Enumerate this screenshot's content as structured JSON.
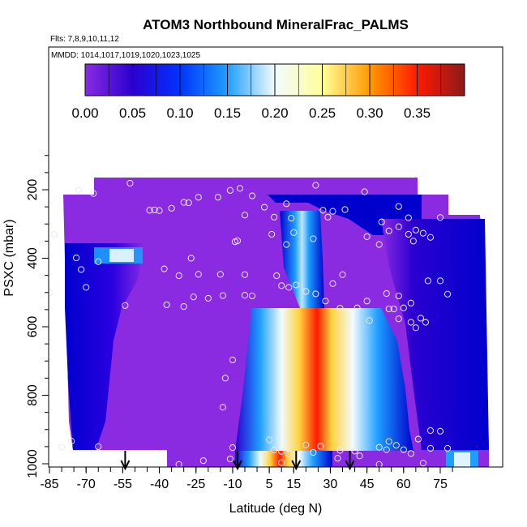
{
  "chart_data": {
    "type": "heatmap",
    "title": "ATOM3 Northbound MineralFrac_PALMS",
    "flights_label": "Flts: 7,8,9,10,11,12",
    "dates_label": "MMDD: 1014,1017,1019,1020,1023,1025",
    "xlabel": "Latitude (deg N)",
    "ylabel": "PSXC (mbar)",
    "x_ticks": [
      "-85",
      "-70",
      "-55",
      "-40",
      "-25",
      "-10",
      "5",
      "15",
      "30",
      "45",
      "60",
      "75"
    ],
    "x_tick_values": [
      -85,
      -70,
      -55,
      -40,
      -25,
      -10,
      5,
      15,
      30,
      45,
      60,
      75
    ],
    "y_ticks": [
      "200",
      "400",
      "600",
      "800",
      "1000"
    ],
    "y_tick_values": [
      200,
      400,
      600,
      800,
      1000
    ],
    "xlim": [
      -85,
      80
    ],
    "ylim_reversed": [
      1000,
      100
    ],
    "colorbar": {
      "ticks": [
        "0.00",
        "0.05",
        "0.10",
        "0.15",
        "0.20",
        "0.25",
        "0.30",
        "0.35"
      ],
      "range": [
        0,
        0.4
      ],
      "colors": [
        "#8a2be2",
        "#0000cd",
        "#1e90ff",
        "#f0f8ff",
        "#ffff99",
        "#ff8c00",
        "#ff0000",
        "#8b1a1a"
      ]
    },
    "arrow_latitudes": [
      -54,
      -8,
      16,
      38
    ],
    "regions": [
      {
        "name": "background",
        "value": 0.01
      },
      {
        "name": "southern-high-lat-blue",
        "value": 0.05
      },
      {
        "name": "tropical-dust-plume-core",
        "value": 0.35
      },
      {
        "name": "tropical-dust-plume-edge",
        "value": 0.15
      },
      {
        "name": "northern-mid-lat-blue",
        "value": 0.06
      }
    ],
    "samples": [
      [
        -73,
        201
      ],
      [
        -67,
        211
      ],
      [
        -52,
        181
      ],
      [
        -44,
        260
      ],
      [
        -42,
        259
      ],
      [
        -40,
        261
      ],
      [
        -35,
        254
      ],
      [
        -30,
        237
      ],
      [
        -28,
        238
      ],
      [
        -24,
        222
      ],
      [
        -16,
        222
      ],
      [
        -11,
        202
      ],
      [
        -7,
        196
      ],
      [
        -2,
        218
      ],
      [
        3,
        251
      ],
      [
        12,
        241
      ],
      [
        24,
        187
      ],
      [
        31,
        263
      ],
      [
        36,
        258
      ],
      [
        44,
        206
      ],
      [
        51,
        294
      ],
      [
        58,
        249
      ],
      [
        62,
        282
      ],
      [
        -5,
        274
      ],
      [
        7,
        280
      ],
      [
        14,
        283
      ],
      [
        27,
        260
      ],
      [
        29,
        280
      ],
      [
        -83,
        330
      ],
      [
        -74,
        399
      ],
      [
        -65,
        410
      ],
      [
        -72,
        433
      ],
      [
        -38,
        431
      ],
      [
        -9,
        352
      ],
      [
        -8,
        349
      ],
      [
        -27,
        400
      ],
      [
        6,
        330
      ],
      [
        15,
        325
      ],
      [
        12,
        360
      ],
      [
        23,
        343
      ],
      [
        45,
        337
      ],
      [
        50,
        360
      ],
      [
        54,
        320
      ],
      [
        58,
        308
      ],
      [
        65,
        318
      ],
      [
        68,
        327
      ],
      [
        71,
        339
      ],
      [
        75,
        281
      ],
      [
        62,
        330
      ],
      [
        64,
        350
      ],
      [
        -85,
        500
      ],
      [
        -70,
        485
      ],
      [
        -32,
        451
      ],
      [
        -24,
        447
      ],
      [
        -15,
        447
      ],
      [
        -5,
        448
      ],
      [
        8,
        451
      ],
      [
        16,
        478
      ],
      [
        20,
        497
      ],
      [
        24,
        504
      ],
      [
        31,
        474
      ],
      [
        35,
        448
      ],
      [
        45,
        525
      ],
      [
        53,
        503
      ],
      [
        58,
        510
      ],
      [
        60,
        545
      ],
      [
        63,
        531
      ],
      [
        70,
        466
      ],
      [
        75,
        466
      ],
      [
        78,
        505
      ],
      [
        -54,
        538
      ],
      [
        -37,
        536
      ],
      [
        -30,
        541
      ],
      [
        -26,
        513
      ],
      [
        -20,
        517
      ],
      [
        -14,
        509
      ],
      [
        -5,
        508
      ],
      [
        -2,
        510
      ],
      [
        10,
        480
      ],
      [
        13,
        485
      ],
      [
        28,
        525
      ],
      [
        34,
        546
      ],
      [
        41,
        545
      ],
      [
        46,
        582
      ],
      [
        54,
        548
      ],
      [
        56,
        548
      ],
      [
        58,
        577
      ],
      [
        63,
        587
      ],
      [
        65,
        603
      ],
      [
        67,
        575
      ],
      [
        69,
        587
      ],
      [
        -10,
        697
      ],
      [
        -13,
        750
      ],
      [
        -14,
        835
      ],
      [
        -10,
        953
      ],
      [
        5,
        930
      ],
      [
        7,
        960
      ],
      [
        10,
        997
      ],
      [
        20,
        945
      ],
      [
        34,
        961
      ],
      [
        42,
        977
      ],
      [
        50,
        952
      ],
      [
        54,
        935
      ],
      [
        57,
        946
      ],
      [
        60,
        959
      ],
      [
        63,
        970
      ],
      [
        68,
        998
      ],
      [
        71,
        903
      ],
      [
        75,
        905
      ],
      [
        78,
        955
      ],
      [
        -80,
        951
      ],
      [
        -76,
        934
      ],
      [
        -65,
        950
      ],
      [
        -32,
        1002
      ],
      [
        -22,
        991
      ],
      [
        -11,
        986
      ],
      [
        3,
        973
      ],
      [
        10,
        964
      ],
      [
        13,
        971
      ],
      [
        23,
        967
      ],
      [
        26,
        949
      ],
      [
        33,
        984
      ],
      [
        40,
        963
      ],
      [
        53,
        959
      ],
      [
        66,
        928
      ],
      [
        71,
        955
      ],
      [
        50,
        1002
      ]
    ]
  }
}
